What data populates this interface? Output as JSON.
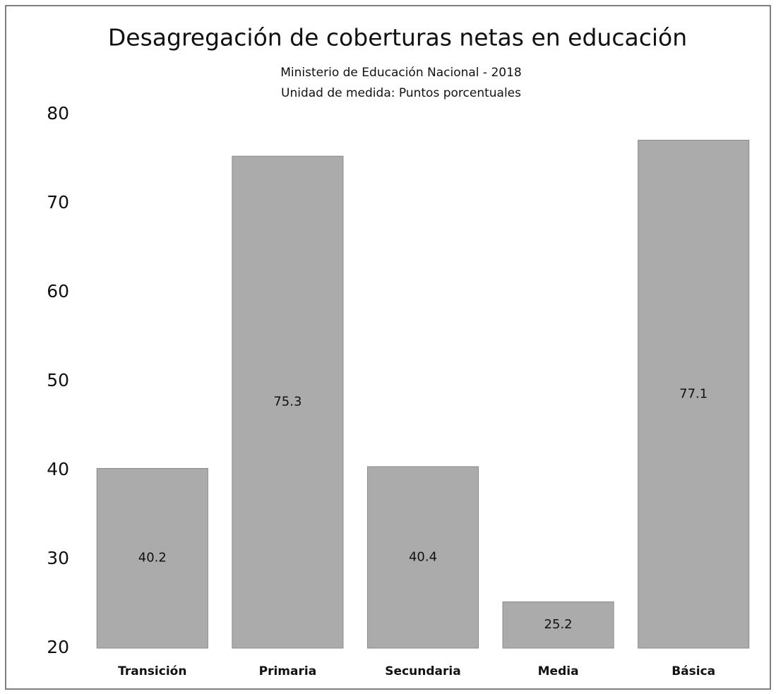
{
  "chart_data": {
    "type": "bar",
    "title": "Desagregación de coberturas netas en educación",
    "subtitle": [
      "Ministerio de Educación Nacional - 2018",
      "Unidad de medida: Puntos porcentuales"
    ],
    "categories": [
      "Transición",
      "Primaria",
      "Secundaria",
      "Media",
      "Básica"
    ],
    "values": [
      40.2,
      75.3,
      40.4,
      25.2,
      77.1
    ],
    "color": "#ababab",
    "ylim": [
      20,
      80
    ],
    "yticks": [
      20,
      30,
      40,
      50,
      60,
      70,
      80
    ],
    "grid": false
  }
}
